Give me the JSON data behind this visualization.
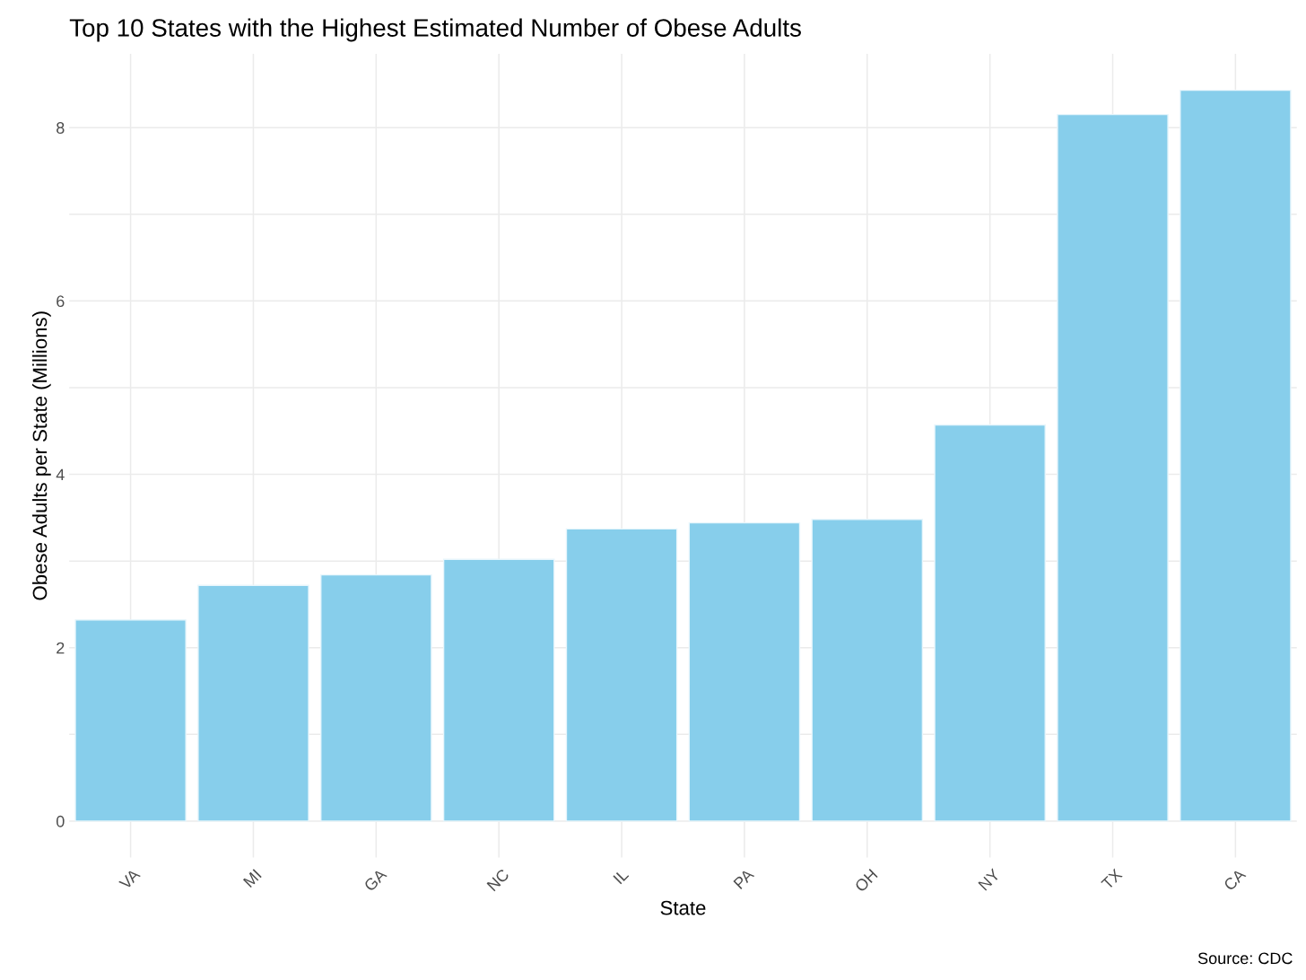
{
  "chart_data": {
    "type": "bar",
    "title": "Top 10 States with the Highest Estimated Number of Obese Adults",
    "xlabel": "State",
    "ylabel": "Obese Adults per State (Millions)",
    "categories": [
      "VA",
      "MI",
      "GA",
      "NC",
      "IL",
      "PA",
      "OH",
      "NY",
      "TX",
      "CA"
    ],
    "values": [
      2.32,
      2.72,
      2.84,
      3.02,
      3.37,
      3.44,
      3.48,
      4.57,
      8.15,
      8.43
    ],
    "color": "#87ceeb",
    "ylim": [
      -0.42,
      8.85
    ],
    "yticks": [
      0,
      {
        "value": 1,
        "label": null
      },
      2,
      {
        "value": 3,
        "label": null
      },
      4,
      {
        "value": 5,
        "label": null
      },
      6,
      {
        "value": 7,
        "label": null
      },
      8
    ],
    "grid": true,
    "annotations": [
      "Source: CDC"
    ]
  }
}
